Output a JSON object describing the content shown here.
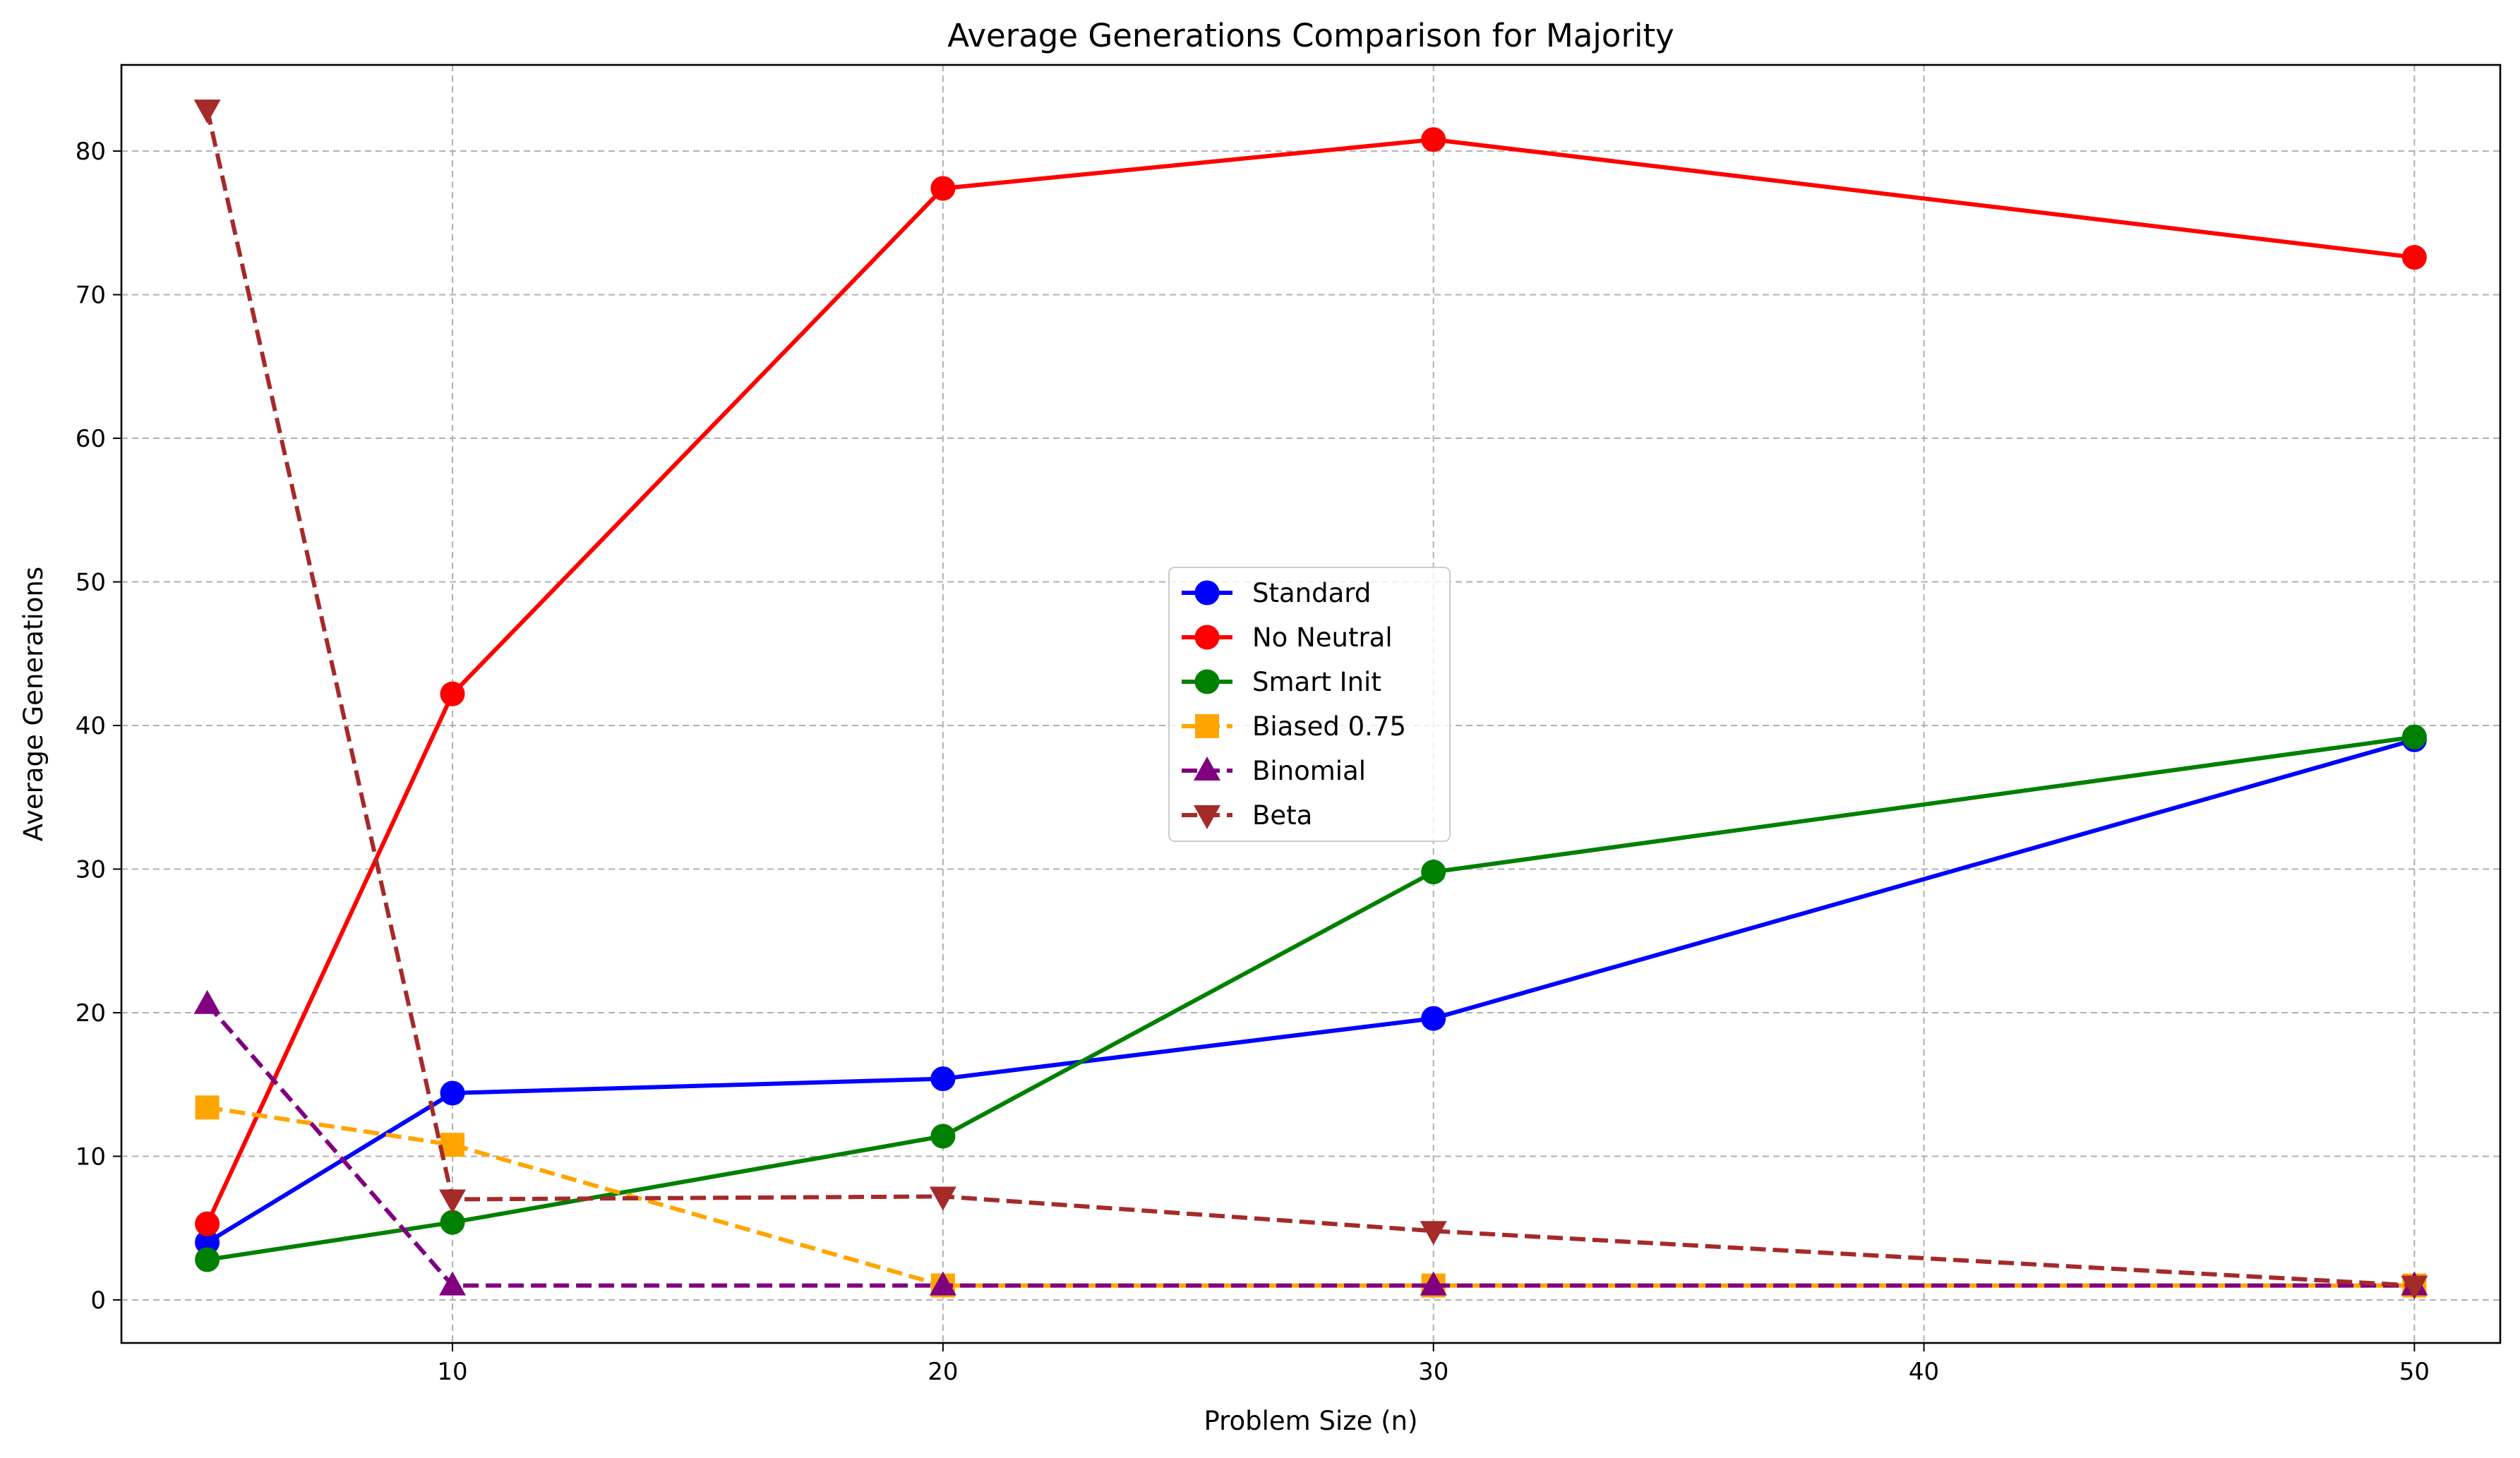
{
  "chart_data": {
    "type": "line",
    "title": "Average Generations Comparison for Majority",
    "xlabel": "Problem Size (n)",
    "ylabel": "Average Generations",
    "x": [
      5,
      10,
      20,
      30,
      50
    ],
    "xlim": [
      3.25,
      51.75
    ],
    "ylim": [
      -3.0,
      86.0
    ],
    "xticks": [
      10,
      20,
      30,
      40,
      50
    ],
    "yticks": [
      0,
      10,
      20,
      30,
      40,
      50,
      60,
      70,
      80
    ],
    "grid": true,
    "legend_position": "center",
    "series": [
      {
        "name": "Standard",
        "values": [
          4.0,
          14.4,
          15.4,
          19.6,
          39.0
        ],
        "color": "#0000ff",
        "linestyle": "solid",
        "marker": "circle"
      },
      {
        "name": "No Neutral",
        "values": [
          5.3,
          42.2,
          77.4,
          80.8,
          72.6
        ],
        "color": "#ff0000",
        "linestyle": "solid",
        "marker": "circle"
      },
      {
        "name": "Smart Init",
        "values": [
          2.8,
          5.4,
          11.4,
          29.8,
          39.2
        ],
        "color": "#008000",
        "linestyle": "solid",
        "marker": "circle"
      },
      {
        "name": "Biased 0.75",
        "values": [
          13.4,
          10.8,
          1.0,
          1.0,
          1.0
        ],
        "color": "#ffa500",
        "linestyle": "dashed",
        "marker": "square"
      },
      {
        "name": "Binomial",
        "values": [
          20.6,
          1.0,
          1.0,
          1.0,
          1.0
        ],
        "color": "#800080",
        "linestyle": "dashed",
        "marker": "triangle-up"
      },
      {
        "name": "Beta",
        "values": [
          82.9,
          7.0,
          7.2,
          4.8,
          1.0
        ],
        "color": "#a52a2a",
        "linestyle": "dashed",
        "marker": "triangle-down"
      }
    ]
  }
}
